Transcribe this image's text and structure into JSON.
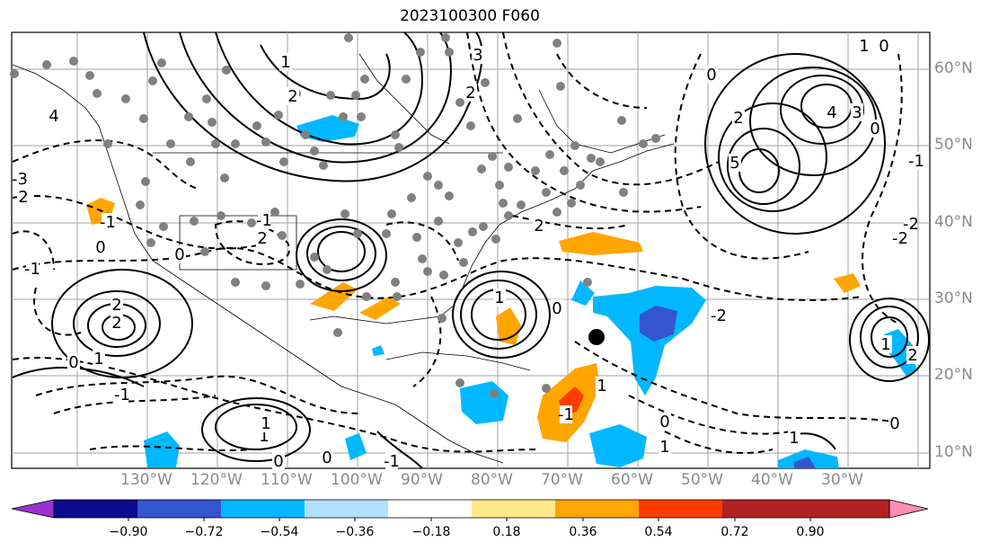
{
  "title": "2023100300 F060",
  "lon_labels": [
    "130°W",
    "120°W",
    "110°W",
    "100°W",
    "90°W",
    "80°W",
    "70°W",
    "60°W",
    "50°W",
    "40°W",
    "30°W"
  ],
  "lat_labels": [
    "60°N",
    "50°N",
    "40°N",
    "30°N",
    "20°N",
    "10°N"
  ],
  "contour_labels": [
    "0",
    "1",
    "2",
    "3",
    "4",
    "5",
    "-1",
    "-2",
    "-3"
  ],
  "colorbar": {
    "tick_labels": [
      "−0.90",
      "−0.72",
      "−0.54",
      "−0.36",
      "−0.18",
      "0.18",
      "0.36",
      "0.54",
      "0.72",
      "0.90"
    ],
    "colors": [
      "#9b30d0",
      "#0a0a8c",
      "#3555d0",
      "#00b8ff",
      "#b3e0ff",
      "#ffffff",
      "#ffe88a",
      "#ffa500",
      "#ff3c00",
      "#b22222",
      "#ff8cb4"
    ]
  },
  "markers": {
    "station_color": "#808080",
    "storm_center_color": "#000000"
  }
}
